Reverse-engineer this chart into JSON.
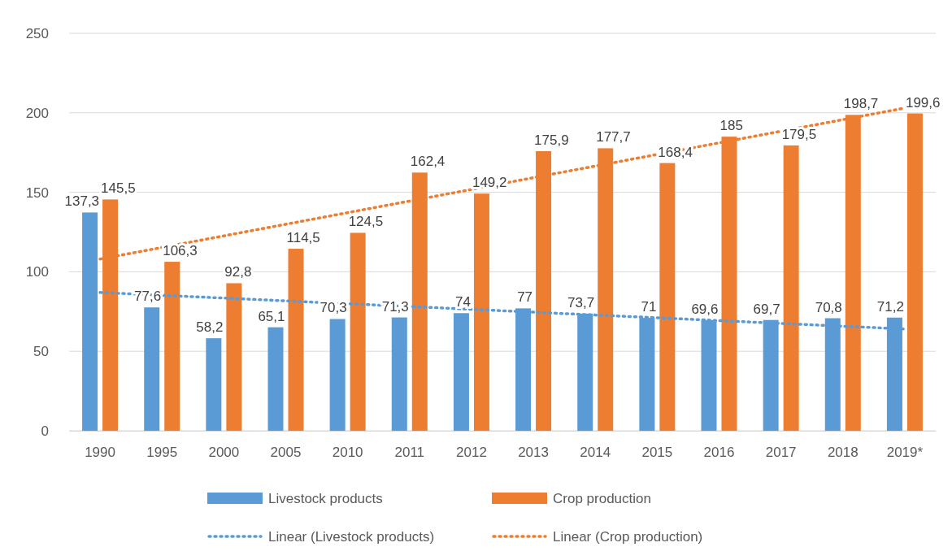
{
  "chart_data": {
    "type": "bar",
    "categories": [
      "1990",
      "1995",
      "2000",
      "2005",
      "2010",
      "2011",
      "2012",
      "2013",
      "2014",
      "2015",
      "2016",
      "2017",
      "2018",
      "2019*"
    ],
    "series": [
      {
        "name": "Livestock products",
        "color": "#5b9bd5",
        "values": [
          137.3,
          77.6,
          58.2,
          65.1,
          70.3,
          71.3,
          74,
          77,
          73.7,
          71,
          69.6,
          69.7,
          70.8,
          71.2
        ],
        "value_labels": [
          "137,3",
          "77,6",
          "58,2",
          "65,1",
          "70,3",
          "71,3",
          "74",
          "77",
          "73,7",
          "71",
          "69,6",
          "69,7",
          "70,8",
          "71,2"
        ]
      },
      {
        "name": "Crop production",
        "color": "#ed7d31",
        "values": [
          145.5,
          106.3,
          92.8,
          114.5,
          124.5,
          162.4,
          149.2,
          175.9,
          177.7,
          168.4,
          185,
          179.5,
          198.7,
          199.6
        ],
        "value_labels": [
          "145,5",
          "106,3",
          "92,8",
          "114,5",
          "124,5",
          "162,4",
          "149,2",
          "175,9",
          "177,7",
          "168,4",
          "185",
          "179,5",
          "198,7",
          "199,6"
        ]
      },
      {
        "name": "Linear (Livestock products)",
        "type": "line",
        "color": "#5b9bd5",
        "line_style": "dotted",
        "marker": "none",
        "values": [
          87,
          85.2,
          83.5,
          81.7,
          79.9,
          78.2,
          76.4,
          74.6,
          72.8,
          71.1,
          69.3,
          67.5,
          65.8,
          64
        ]
      },
      {
        "name": "Linear (Crop production)",
        "type": "line",
        "color": "#ed7d31",
        "line_style": "dotted",
        "marker": "none",
        "values": [
          108,
          115.3,
          122.6,
          129.9,
          137.2,
          144.5,
          151.8,
          159.2,
          166.5,
          173.8,
          181.1,
          188.4,
          195.7,
          203
        ]
      }
    ],
    "ylim": [
      0,
      250
    ],
    "yticks": [
      0,
      50,
      100,
      150,
      200,
      250
    ],
    "grid": "y",
    "legend": "bottom"
  }
}
